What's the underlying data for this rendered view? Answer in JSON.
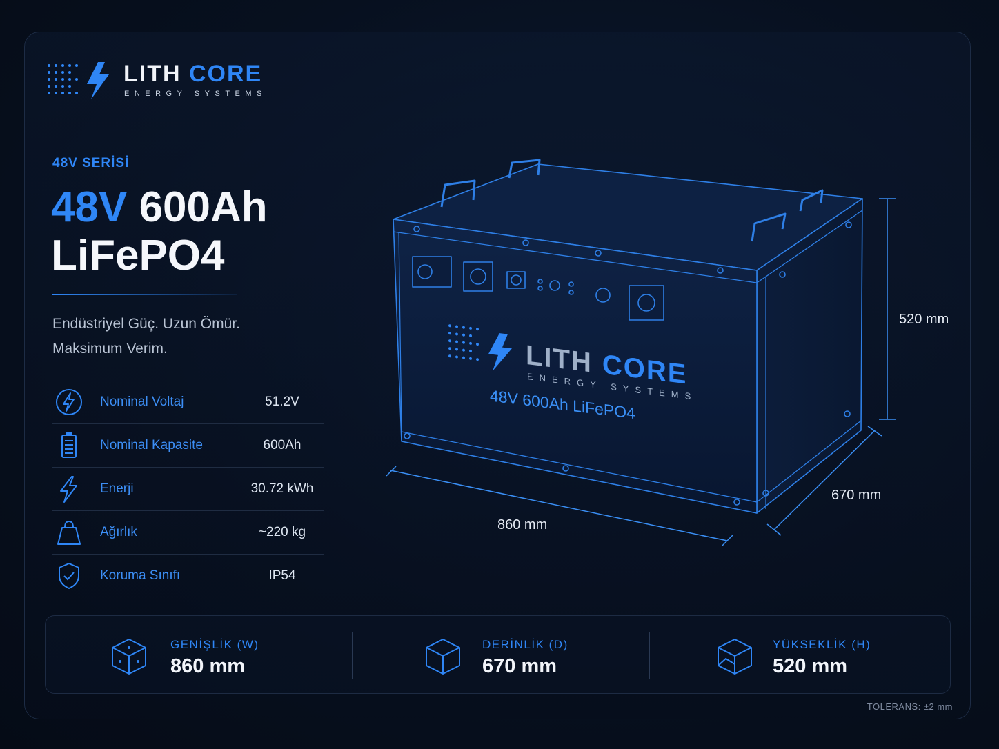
{
  "brand": {
    "name_part1": "LITH",
    "name_part2": "CORE",
    "subtitle": "ENERGY SYSTEMS",
    "accent_color": "#2f86f6"
  },
  "product": {
    "series": "48V SERİSİ",
    "title_voltage": "48V",
    "title_capacity": "600Ah",
    "title_chemistry": "LiFePO4",
    "tagline_line1": "Endüstriyel Güç. Uzun Ömür.",
    "tagline_line2": "Maksimum Verim."
  },
  "specs": [
    {
      "icon": "voltage-icon",
      "label": "Nominal Voltaj",
      "value": "51.2V"
    },
    {
      "icon": "battery-capacity-icon",
      "label": "Nominal Kapasite",
      "value": "600Ah"
    },
    {
      "icon": "energy-bolt-icon",
      "label": "Enerji",
      "value": "30.72 kWh"
    },
    {
      "icon": "weight-icon",
      "label": "Ağırlık",
      "value": "~220 kg"
    },
    {
      "icon": "shield-check-icon",
      "label": "Koruma Sınıfı",
      "value": "IP54"
    }
  ],
  "battery_illustration": {
    "label": "48V 600Ah LiFePO4",
    "brand_part1": "LITH",
    "brand_part2": "CORE",
    "brand_sub": "ENERGY SYSTEMS",
    "dim_height": "520 mm",
    "dim_depth": "670 mm",
    "dim_width": "860 mm"
  },
  "dimensions": [
    {
      "icon": "cube-width-icon",
      "caption": "GENİŞLİK (W)",
      "value": "860 mm"
    },
    {
      "icon": "cube-depth-icon",
      "caption": "DERİNLİK (D)",
      "value": "670 mm"
    },
    {
      "icon": "cube-height-icon",
      "caption": "YÜKSEKLİK (H)",
      "value": "520 mm"
    }
  ],
  "tolerance": "TOLERANS: ±2 mm"
}
